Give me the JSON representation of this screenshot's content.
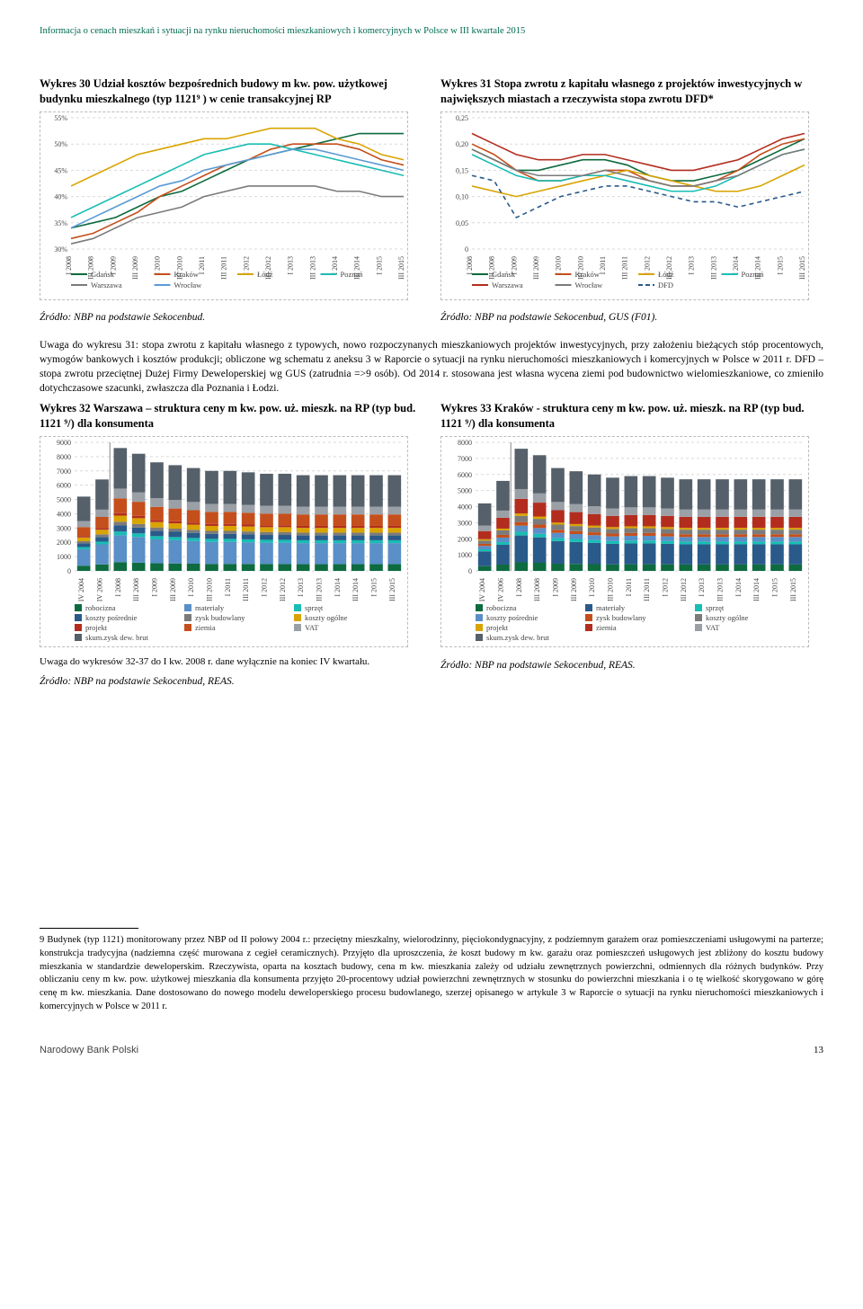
{
  "header": "Informacja o cenach mieszkań i sytuacji na rynku nieruchomości mieszkaniowych i komercyjnych w Polsce w III kwartale 2015",
  "chart30": {
    "title": "Wykres 30 Udział kosztów bezpośrednich budowy m kw. pow. użytkowej budynku mieszkalnego (typ 1121⁹ ) w cenie transakcyjnej RP",
    "type": "line",
    "ylim": [
      30,
      55
    ],
    "ytick_step": 5,
    "y_format": "%",
    "x_labels": [
      "I 2008",
      "III 2008",
      "I 2009",
      "III 2009",
      "I 2010",
      "III 2010",
      "I 2011",
      "III 2011",
      "I 2012",
      "III 2012",
      "I 2013",
      "III 2013",
      "I 2014",
      "III 2014",
      "I 2015",
      "III 2015"
    ],
    "series": [
      {
        "name": "Gdańsk",
        "color": "#0d6b3f",
        "values": [
          34,
          35,
          36,
          38,
          40,
          41,
          43,
          45,
          47,
          48,
          49,
          50,
          51,
          52,
          52,
          52
        ]
      },
      {
        "name": "Kraków",
        "color": "#c54f1c",
        "values": [
          32,
          33,
          35,
          37,
          40,
          42,
          44,
          46,
          47,
          49,
          50,
          50,
          50,
          49,
          47,
          46
        ]
      },
      {
        "name": "Łódź",
        "color": "#d9a300",
        "values": [
          42,
          44,
          46,
          48,
          49,
          50,
          51,
          51,
          52,
          53,
          53,
          53,
          51,
          50,
          48,
          47
        ]
      },
      {
        "name": "Poznań",
        "color": "#18bdb4",
        "values": [
          36,
          38,
          40,
          42,
          44,
          46,
          48,
          49,
          50,
          50,
          49,
          48,
          47,
          46,
          45,
          44
        ]
      },
      {
        "name": "Warszawa",
        "color": "#7b7b7b",
        "values": [
          31,
          32,
          34,
          36,
          37,
          38,
          40,
          41,
          42,
          42,
          42,
          42,
          41,
          41,
          40,
          40
        ]
      },
      {
        "name": "Wrocław",
        "color": "#5b9bd5",
        "values": [
          34,
          36,
          38,
          40,
          42,
          43,
          45,
          46,
          47,
          48,
          49,
          49,
          48,
          47,
          46,
          45
        ]
      }
    ],
    "grid_color": "#d9d9d9",
    "background": "#ffffff",
    "source": "Źródło: NBP na podstawie Sekocenbud."
  },
  "chart31": {
    "title": "Wykres 31 Stopa zwrotu z kapitału własnego z projektów inwestycyjnych w największych miastach a rzeczywista stopa zwrotu DFD*",
    "type": "line",
    "ylim": [
      0,
      0.25
    ],
    "ytick_step": 0.05,
    "x_labels": [
      "I 2008",
      "III 2008",
      "I 2009",
      "III 2009",
      "I 2010",
      "III 2010",
      "I 2011",
      "III 2011",
      "I 2012",
      "III 2012",
      "I 2013",
      "III 2013",
      "I 2014",
      "III 2014",
      "I 2015",
      "III 2015"
    ],
    "series": [
      {
        "name": "Gdańsk",
        "color": "#0d6b3f",
        "values": [
          0.19,
          0.17,
          0.15,
          0.15,
          0.16,
          0.17,
          0.17,
          0.16,
          0.14,
          0.13,
          0.13,
          0.14,
          0.15,
          0.17,
          0.19,
          0.21
        ]
      },
      {
        "name": "Kraków",
        "color": "#c54f1c",
        "values": [
          0.2,
          0.18,
          0.15,
          0.13,
          0.13,
          0.14,
          0.15,
          0.15,
          0.13,
          0.12,
          0.12,
          0.13,
          0.15,
          0.18,
          0.2,
          0.21
        ]
      },
      {
        "name": "Łódź",
        "color": "#d9a300",
        "values": [
          0.12,
          0.11,
          0.1,
          0.11,
          0.12,
          0.13,
          0.14,
          0.15,
          0.14,
          0.13,
          0.12,
          0.11,
          0.11,
          0.12,
          0.14,
          0.16
        ]
      },
      {
        "name": "Poznań",
        "color": "#18bdb4",
        "values": [
          0.18,
          0.16,
          0.14,
          0.13,
          0.13,
          0.14,
          0.14,
          0.13,
          0.12,
          0.11,
          0.11,
          0.12,
          0.14,
          0.16,
          0.18,
          0.19
        ]
      },
      {
        "name": "Warszawa",
        "color": "#b32d1f",
        "values": [
          0.22,
          0.2,
          0.18,
          0.17,
          0.17,
          0.18,
          0.18,
          0.17,
          0.16,
          0.15,
          0.15,
          0.16,
          0.17,
          0.19,
          0.21,
          0.22
        ]
      },
      {
        "name": "Wrocław",
        "color": "#7b7b7b",
        "values": [
          0.19,
          0.17,
          0.15,
          0.14,
          0.14,
          0.14,
          0.15,
          0.14,
          0.13,
          0.12,
          0.12,
          0.13,
          0.14,
          0.16,
          0.18,
          0.19
        ]
      },
      {
        "name": "DFD",
        "color": "#2a5a8a",
        "dash": true,
        "values": [
          0.14,
          0.13,
          0.06,
          0.08,
          0.1,
          0.11,
          0.12,
          0.12,
          0.11,
          0.1,
          0.09,
          0.09,
          0.08,
          0.09,
          0.1,
          0.11
        ]
      }
    ],
    "grid_color": "#d9d9d9",
    "background": "#ffffff",
    "source": "Źródło: NBP na podstawie Sekocenbud, GUS (F01)."
  },
  "note31": "Uwaga do wykresu 31: stopa zwrotu z kapitału własnego z typowych, nowo rozpoczynanych mieszkaniowych projektów inwestycyjnych, przy założeniu bieżących stóp procentowych, wymogów bankowych i kosztów produkcji; obliczone wg schematu z aneksu 3 w Raporcie o sytuacji na rynku nieruchomości mieszkaniowych i komercyjnych w Polsce w 2011 r. DFD – stopa zwrotu przeciętnej Dużej Firmy Deweloperskiej wg GUS (zatrudnia =>9 osób). Od 2014 r. stosowana jest własna wycena ziemi pod budownictwo wielomieszkaniowe, co zmieniło dotychczasowe szacunki, zwłaszcza dla Poznania i Łodzi.",
  "chart32": {
    "title": "Wykres 32 Warszawa – struktura ceny m kw. pow. uż. mieszk. na RP (typ bud. 1121 ⁹/) dla konsumenta",
    "type": "stacked_bar",
    "ylim": [
      0,
      9000
    ],
    "ytick_step": 1000,
    "x_labels": [
      "IV 2004",
      "IV 2006",
      "I 2008",
      "III 2008",
      "I 2009",
      "III 2009",
      "I 2010",
      "III 2010",
      "I 2011",
      "III 2011",
      "I 2012",
      "III 2012",
      "I 2013",
      "III 2013",
      "I 2014",
      "III 2014",
      "I 2015",
      "III 2015"
    ],
    "stacks": [
      {
        "name": "robocizna",
        "color": "#0d6b3f"
      },
      {
        "name": "materiały",
        "color": "#5a8fc7"
      },
      {
        "name": "sprzęt",
        "color": "#18bdb4"
      },
      {
        "name": "koszty pośrednie",
        "color": "#2a5a8a"
      },
      {
        "name": "zysk budowlany",
        "color": "#7b7b7b"
      },
      {
        "name": "koszty ogólne",
        "color": "#d9a300"
      },
      {
        "name": "projekt",
        "color": "#b32d1f"
      },
      {
        "name": "ziemia",
        "color": "#c54f1c"
      },
      {
        "name": "VAT",
        "color": "#9aa0a6"
      },
      {
        "name": "skum.zysk dew. brut",
        "color": "#55606a"
      }
    ],
    "totals": [
      5200,
      6400,
      8600,
      8200,
      7600,
      7400,
      7200,
      7000,
      7000,
      6900,
      6800,
      6800,
      6700,
      6700,
      6700,
      6700,
      6700,
      6700
    ],
    "note": "Uwaga do wykresów 32-37 do I kw. 2008 r. dane wyłącznie na koniec IV kwartału.",
    "source": "Źródło: NBP na podstawie Sekocenbud, REAS."
  },
  "chart33": {
    "title": "Wykres 33 Kraków - struktura ceny m kw. pow. uż. mieszk. na RP (typ bud. 1121 ⁹/) dla konsumenta",
    "type": "stacked_bar",
    "ylim": [
      0,
      8000
    ],
    "ytick_step": 1000,
    "x_labels": [
      "IV 2004",
      "IV 2006",
      "I 2008",
      "III 2008",
      "I 2009",
      "III 2009",
      "I 2010",
      "III 2010",
      "I 2011",
      "III 2011",
      "I 2012",
      "III 2012",
      "I 2013",
      "III 2013",
      "I 2014",
      "III 2014",
      "I 2015",
      "III 2015"
    ],
    "stacks": [
      {
        "name": "robocizna",
        "color": "#0d6b3f"
      },
      {
        "name": "materiały",
        "color": "#2a5a8a"
      },
      {
        "name": "sprzęt",
        "color": "#18bdb4"
      },
      {
        "name": "koszty pośrednie",
        "color": "#5a8fc7"
      },
      {
        "name": "zysk budowlany",
        "color": "#c54f1c"
      },
      {
        "name": "koszty ogólne",
        "color": "#7b7b7b"
      },
      {
        "name": "projekt",
        "color": "#d9a300"
      },
      {
        "name": "ziemia",
        "color": "#b32d1f"
      },
      {
        "name": "VAT",
        "color": "#9aa0a6"
      },
      {
        "name": "skum.zysk dew. brut",
        "color": "#55606a"
      }
    ],
    "totals": [
      4200,
      5600,
      7600,
      7200,
      6400,
      6200,
      6000,
      5800,
      5900,
      5900,
      5800,
      5700,
      5700,
      5700,
      5700,
      5700,
      5700,
      5700
    ],
    "source": "Źródło: NBP na podstawie Sekocenbud, REAS."
  },
  "footnote9": "9 Budynek (typ 1121) monitorowany przez NBP od II połowy 2004 r.: przeciętny mieszkalny, wielorodzinny, pięciokondygnacyjny, z podziemnym garażem oraz pomieszczeniami usługowymi na parterze; konstrukcja tradycyjna (nadziemna część murowana z cegieł ceramicznych). Przyjęto dla uproszczenia, że koszt budowy m kw. garażu oraz pomieszczeń usługowych jest zbliżony do kosztu budowy mieszkania w standardzie deweloperskim. Rzeczywista, oparta na kosztach budowy, cena m kw. mieszkania zależy od udziału zewnętrznych powierzchni, odmiennych dla różnych budynków. Przy obliczaniu ceny m kw. pow. użytkowej mieszkania dla konsumenta przyjęto 20-procentowy udział powierzchni zewnętrznych w stosunku do powierzchni mieszkania i o tę wielkość skorygowano w górę cenę m kw. mieszkania. Dane dostosowano do nowego modelu deweloperskiego procesu budowlanego, szerzej opisanego w artykule 3 w Raporcie o sytuacji na rynku nieruchomości mieszkaniowych i komercyjnych w Polsce w 2011 r.",
  "footer": {
    "left": "Narodowy Bank Polski",
    "page": "13"
  }
}
